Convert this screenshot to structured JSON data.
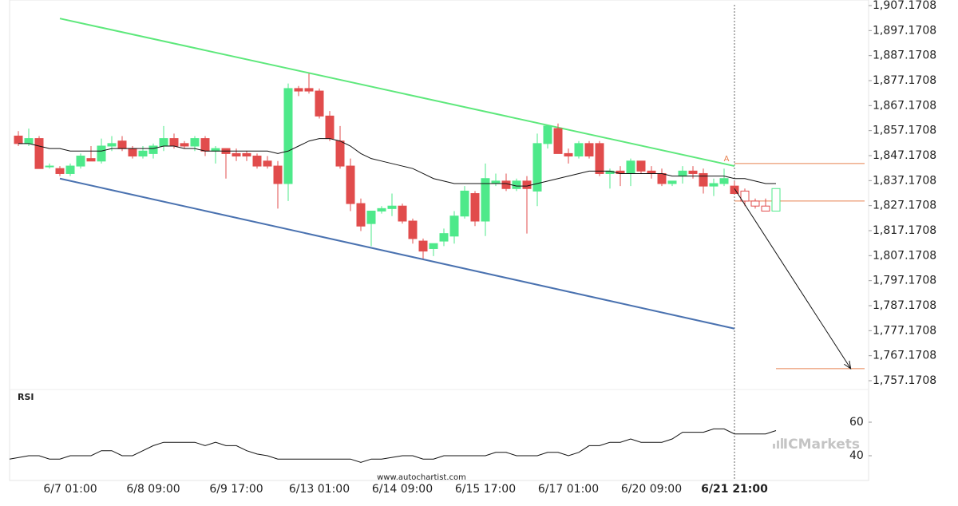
{
  "chart_data": [
    {
      "type": "candlestick",
      "categories": [
        null,
        null,
        null,
        null,
        null,
        "6/7 01:00",
        null,
        null,
        null,
        null,
        null,
        null,
        null,
        "6/8 09:00",
        null,
        null,
        null,
        null,
        null,
        null,
        null,
        "6/9 17:00",
        null,
        null,
        null,
        null,
        null,
        null,
        null,
        "6/13 01:00",
        null,
        null,
        null,
        null,
        null,
        null,
        null,
        "6/14 09:00",
        null,
        null,
        null,
        null,
        null,
        null,
        null,
        "6/15 17:00",
        null,
        null,
        null,
        null,
        null,
        null,
        null,
        "6/17 01:00",
        null,
        null,
        null,
        null,
        null,
        null,
        null,
        "6/20 09:00",
        null,
        null,
        null,
        null,
        null,
        null,
        null,
        "6/21 21:00",
        null,
        null,
        null,
        null
      ],
      "candles": [
        {
          "open": 1855,
          "high": 1857,
          "low": 1851,
          "close": 1852
        },
        {
          "open": 1852,
          "high": 1858,
          "low": 1851,
          "close": 1854
        },
        {
          "open": 1854,
          "high": 1855,
          "low": 1842,
          "close": 1842
        },
        {
          "open": 1843,
          "high": 1844,
          "low": 1842,
          "close": 1843
        },
        {
          "open": 1842,
          "high": 1843,
          "low": 1839,
          "close": 1840
        },
        {
          "open": 1840,
          "high": 1844,
          "low": 1839,
          "close": 1843
        },
        {
          "open": 1843,
          "high": 1848,
          "low": 1842,
          "close": 1847
        },
        {
          "open": 1846,
          "high": 1851,
          "low": 1845,
          "close": 1845
        },
        {
          "open": 1845,
          "high": 1854,
          "low": 1844,
          "close": 1851
        },
        {
          "open": 1851,
          "high": 1855,
          "low": 1849,
          "close": 1852
        },
        {
          "open": 1853,
          "high": 1855,
          "low": 1849,
          "close": 1850
        },
        {
          "open": 1850,
          "high": 1851,
          "low": 1846,
          "close": 1847
        },
        {
          "open": 1847,
          "high": 1851,
          "low": 1846,
          "close": 1849
        },
        {
          "open": 1848,
          "high": 1852,
          "low": 1846,
          "close": 1851
        },
        {
          "open": 1851,
          "high": 1859,
          "low": 1849,
          "close": 1854
        },
        {
          "open": 1854,
          "high": 1856,
          "low": 1850,
          "close": 1851
        },
        {
          "open": 1852,
          "high": 1853,
          "low": 1850,
          "close": 1851
        },
        {
          "open": 1851,
          "high": 1855,
          "low": 1849,
          "close": 1854
        },
        {
          "open": 1854,
          "high": 1855,
          "low": 1847,
          "close": 1849
        },
        {
          "open": 1849,
          "high": 1851,
          "low": 1844,
          "close": 1850
        },
        {
          "open": 1850,
          "high": 1850,
          "low": 1838,
          "close": 1848
        },
        {
          "open": 1848,
          "high": 1850,
          "low": 1845,
          "close": 1847
        },
        {
          "open": 1848,
          "high": 1849,
          "low": 1845,
          "close": 1847
        },
        {
          "open": 1847,
          "high": 1848,
          "low": 1842,
          "close": 1843
        },
        {
          "open": 1845,
          "high": 1847,
          "low": 1842,
          "close": 1843
        },
        {
          "open": 1843,
          "high": 1845,
          "low": 1826,
          "close": 1836
        },
        {
          "open": 1836,
          "high": 1876,
          "low": 1829,
          "close": 1874
        },
        {
          "open": 1874,
          "high": 1875,
          "low": 1871,
          "close": 1873
        },
        {
          "open": 1874,
          "high": 1880,
          "low": 1872,
          "close": 1873
        },
        {
          "open": 1873,
          "high": 1874,
          "low": 1862,
          "close": 1863
        },
        {
          "open": 1863,
          "high": 1865,
          "low": 1853,
          "close": 1854
        },
        {
          "open": 1853,
          "high": 1859,
          "low": 1842,
          "close": 1843
        },
        {
          "open": 1843,
          "high": 1846,
          "low": 1825,
          "close": 1828
        },
        {
          "open": 1828,
          "high": 1830,
          "low": 1817,
          "close": 1819
        },
        {
          "open": 1820,
          "high": 1825,
          "low": 1811,
          "close": 1825
        },
        {
          "open": 1825,
          "high": 1827,
          "low": 1824,
          "close": 1826
        },
        {
          "open": 1826,
          "high": 1832,
          "low": 1823,
          "close": 1827
        },
        {
          "open": 1827,
          "high": 1828,
          "low": 1820,
          "close": 1821
        },
        {
          "open": 1821,
          "high": 1822,
          "low": 1812,
          "close": 1814
        },
        {
          "open": 1813,
          "high": 1814,
          "low": 1806,
          "close": 1809
        },
        {
          "open": 1810,
          "high": 1812,
          "low": 1807,
          "close": 1812
        },
        {
          "open": 1813,
          "high": 1818,
          "low": 1811,
          "close": 1816
        },
        {
          "open": 1815,
          "high": 1825,
          "low": 1812,
          "close": 1823
        },
        {
          "open": 1823,
          "high": 1835,
          "low": 1822,
          "close": 1833
        },
        {
          "open": 1832,
          "high": 1833,
          "low": 1819,
          "close": 1821
        },
        {
          "open": 1821,
          "high": 1844,
          "low": 1815,
          "close": 1838
        },
        {
          "open": 1836,
          "high": 1840,
          "low": 1835,
          "close": 1837
        },
        {
          "open": 1837,
          "high": 1840,
          "low": 1833,
          "close": 1834
        },
        {
          "open": 1834,
          "high": 1838,
          "low": 1833,
          "close": 1837
        },
        {
          "open": 1837,
          "high": 1839,
          "low": 1816,
          "close": 1834
        },
        {
          "open": 1833,
          "high": 1856,
          "low": 1827,
          "close": 1852
        },
        {
          "open": 1852,
          "high": 1859,
          "low": 1850,
          "close": 1859
        },
        {
          "open": 1858,
          "high": 1860,
          "low": 1848,
          "close": 1848
        },
        {
          "open": 1848,
          "high": 1850,
          "low": 1844,
          "close": 1847
        },
        {
          "open": 1847,
          "high": 1853,
          "low": 1846,
          "close": 1852
        },
        {
          "open": 1852,
          "high": 1853,
          "low": 1846,
          "close": 1847
        },
        {
          "open": 1852,
          "high": 1853,
          "low": 1839,
          "close": 1840
        },
        {
          "open": 1840,
          "high": 1842,
          "low": 1834,
          "close": 1841
        },
        {
          "open": 1841,
          "high": 1843,
          "low": 1835,
          "close": 1840
        },
        {
          "open": 1840,
          "high": 1846,
          "low": 1835,
          "close": 1845
        },
        {
          "open": 1845,
          "high": 1845,
          "low": 1840,
          "close": 1841
        },
        {
          "open": 1841,
          "high": 1843,
          "low": 1838,
          "close": 1840
        },
        {
          "open": 1840,
          "high": 1842,
          "low": 1835,
          "close": 1836
        },
        {
          "open": 1836,
          "high": 1837,
          "low": 1835,
          "close": 1837
        },
        {
          "open": 1839,
          "high": 1843,
          "low": 1836,
          "close": 1841
        },
        {
          "open": 1841,
          "high": 1843,
          "low": 1838,
          "close": 1840
        },
        {
          "open": 1840,
          "high": 1842,
          "low": 1832,
          "close": 1835
        },
        {
          "open": 1835,
          "high": 1838,
          "low": 1831,
          "close": 1836
        },
        {
          "open": 1836,
          "high": 1842,
          "low": 1835,
          "close": 1838
        },
        {
          "open": 1835,
          "high": 1837,
          "low": 1832,
          "close": 1832
        },
        {
          "open": 1833,
          "high": 1834,
          "low": 1827,
          "close": 1829,
          "hollow": true
        },
        {
          "open": 1829,
          "high": 1830,
          "low": 1826,
          "close": 1827,
          "hollow": true
        },
        {
          "open": 1827,
          "high": 1830,
          "low": 1825,
          "close": 1825,
          "hollow": true
        },
        {
          "open": 1825,
          "high": 1834,
          "low": 1825,
          "close": 1834,
          "hollow": true
        }
      ],
      "up_color": "#4ee98a",
      "down_color": "#e14c4c",
      "moving_average": {
        "color": "#111111",
        "values": [
          1852,
          1852,
          1851,
          1850,
          1850,
          1849,
          1849,
          1849,
          1849,
          1850,
          1850,
          1850,
          1850,
          1850,
          1851,
          1851,
          1850,
          1850,
          1849,
          1849,
          1849,
          1849,
          1849,
          1849,
          1849,
          1848,
          1849,
          1851,
          1853,
          1854,
          1854,
          1853,
          1851,
          1848,
          1846,
          1845,
          1844,
          1843,
          1842,
          1840,
          1838,
          1837,
          1836,
          1836,
          1836,
          1836,
          1836,
          1836,
          1835,
          1835,
          1836,
          1837,
          1838,
          1839,
          1840,
          1841,
          1841,
          1841,
          1840,
          1840,
          1840,
          1840,
          1840,
          1839,
          1839,
          1839,
          1839,
          1839,
          1839,
          1838,
          1838,
          1837,
          1836,
          1836
        ]
      },
      "trendlines": [
        {
          "color": "#5ee87c",
          "points": [
            [
              4,
              1902
            ],
            [
              69,
              1843
            ]
          ]
        },
        {
          "color": "#4a72b0",
          "points": [
            [
              4,
              1838
            ],
            [
              69,
              1778
            ]
          ]
        }
      ],
      "levels": [
        {
          "value": 1844,
          "from": 69,
          "label": "A"
        },
        {
          "value": 1829,
          "from": 69
        },
        {
          "value": 1762,
          "from": 73
        }
      ],
      "level_color": "#e8804f",
      "arrow": [
        [
          69,
          1834
        ],
        [
          80.2,
          1762
        ]
      ],
      "ylim": [
        1752,
        1908
      ],
      "yticks": [
        {
          "value": 1907.1708,
          "label": "1,907.1708"
        },
        {
          "value": 1897.1708,
          "label": "1,897.1708"
        },
        {
          "value": 1887.1708,
          "label": "1,887.1708"
        },
        {
          "value": 1877.1708,
          "label": "1,877.1708"
        },
        {
          "value": 1867.1708,
          "label": "1,867.1708"
        },
        {
          "value": 1857.1708,
          "label": "1,857.1708"
        },
        {
          "value": 1847.1708,
          "label": "1,847.1708"
        },
        {
          "value": 1837.1708,
          "label": "1,837.1708"
        },
        {
          "value": 1827.1708,
          "label": "1,827.1708"
        },
        {
          "value": 1817.1708,
          "label": "1,817.1708"
        },
        {
          "value": 1807.1708,
          "label": "1,807.1708"
        },
        {
          "value": 1797.1708,
          "label": "1,797.1708"
        },
        {
          "value": 1787.1708,
          "label": "1,787.1708"
        },
        {
          "value": 1777.1708,
          "label": "1,777.1708"
        },
        {
          "value": 1767.1708,
          "label": "1,767.1708"
        },
        {
          "value": 1757.1708,
          "label": "1,757.1708"
        }
      ],
      "grid": false
    },
    {
      "type": "line",
      "title": "RSI",
      "color": "#111111",
      "values": [
        38,
        40,
        40,
        38,
        38,
        40,
        40,
        40,
        43,
        43,
        40,
        40,
        43,
        46,
        48,
        48,
        48,
        48,
        46,
        48,
        46,
        46,
        43,
        41,
        40,
        38,
        38,
        38,
        38,
        38,
        38,
        38,
        38,
        36,
        38,
        38,
        39,
        40,
        40,
        38,
        38,
        40,
        40,
        40,
        40,
        40,
        42,
        42,
        40,
        40,
        40,
        42,
        42,
        40,
        42,
        46,
        46,
        48,
        48,
        50,
        48,
        48,
        48,
        50,
        54,
        54,
        54,
        56,
        56,
        53,
        53,
        53,
        53,
        55
      ],
      "ylim": [
        30,
        75
      ],
      "yticks": [
        60,
        40
      ]
    }
  ],
  "footer": "www.autochartist.com",
  "watermark": "ICMarkets"
}
